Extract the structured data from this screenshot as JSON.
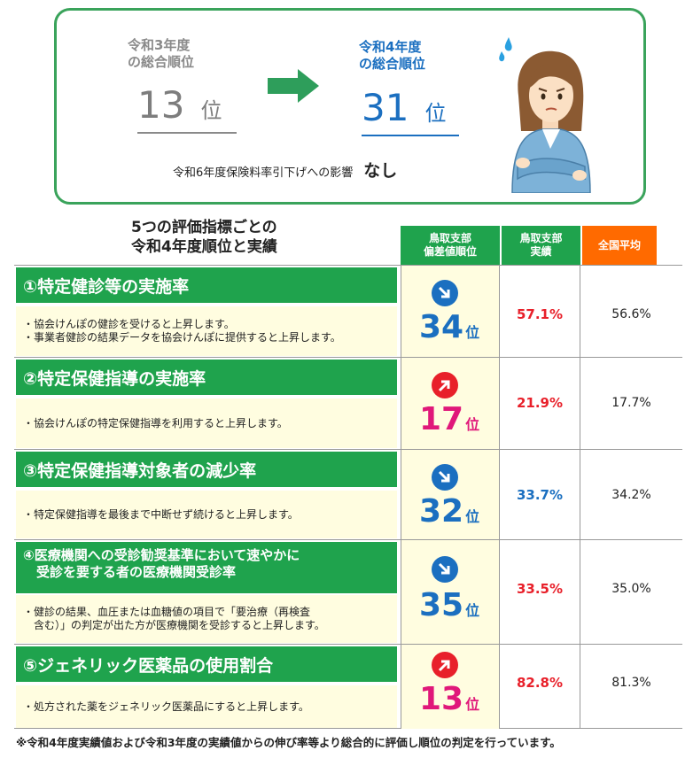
{
  "summary": {
    "prev_label": [
      "令和3年度",
      "の総合順位"
    ],
    "prev_rank": "13",
    "prev_unit": "位",
    "cur_label": [
      "令和4年度",
      "の総合順位"
    ],
    "cur_rank": "31",
    "cur_unit": "位",
    "impact_label": "令和6年度保険料率引下げへの影響",
    "impact_value": "なし",
    "colors": {
      "border": "#3aa35b",
      "prev": "#8a8a8a",
      "cur": "#1b6fc0",
      "arrow": "#2e9e5b"
    }
  },
  "table": {
    "title": [
      "5つの評価指標ごとの",
      "令和4年度順位と実績"
    ],
    "headers": {
      "rank": [
        "鳥取支部",
        "偏差値順位"
      ],
      "achievement": [
        "鳥取支部",
        "実績"
      ],
      "average": "全国平均"
    },
    "rows": [
      {
        "name": "①特定健診等の実施率",
        "desc": [
          "・協会けんぽの健診を受けると上昇します。",
          "・事業者健診の結果データを協会けんぽに提供すると上昇します。"
        ],
        "rank": "34",
        "rank_unit": "位",
        "trend": "down-icon",
        "achievement": "57.1%",
        "ach_color": "#e8202a",
        "average": "56.6%"
      },
      {
        "name": "②特定保健指導の実施率",
        "desc": [
          "・協会けんぽの特定保健指導を利用すると上昇します。"
        ],
        "rank": "17",
        "rank_unit": "位",
        "trend": "up-icon",
        "achievement": "21.9%",
        "ach_color": "#e8202a",
        "average": "17.7%"
      },
      {
        "name": "③特定保健指導対象者の減少率",
        "desc": [
          "・特定保健指導を最後まで中断せず続けると上昇します。"
        ],
        "rank": "32",
        "rank_unit": "位",
        "trend": "down-icon",
        "achievement": "33.7%",
        "ach_color": "#1b6fc0",
        "average": "34.2%"
      },
      {
        "name": [
          "④医療機関への受診勧奨基準において速やかに",
          "　受診を要する者の医療機関受診率"
        ],
        "desc": [
          "・健診の結果、血圧または血糖値の項目で「要治療（再検査",
          "　含む）」の判定が出た方が医療機関を受診すると上昇します。"
        ],
        "rank": "35",
        "rank_unit": "位",
        "trend": "down-icon",
        "achievement": "33.5%",
        "ach_color": "#e8202a",
        "average": "35.0%"
      },
      {
        "name": "⑤ジェネリック医薬品の使用割合",
        "desc": [
          "・処方された薬をジェネリック医薬品にすると上昇します。"
        ],
        "rank": "13",
        "rank_unit": "位",
        "trend": "up-icon",
        "achievement": "82.8%",
        "ach_color": "#e8202a",
        "average": "81.3%"
      }
    ],
    "rank_colors": {
      "down": "#1b6fc0",
      "up": "#e0187a",
      "down_icon": "#1b6fc0",
      "up_icon": "#e8202a"
    }
  },
  "footnote": "※令和4年度実績値および令和3年度の実績値からの伸び率等より総合的に評価し順位の判定を行っています。"
}
